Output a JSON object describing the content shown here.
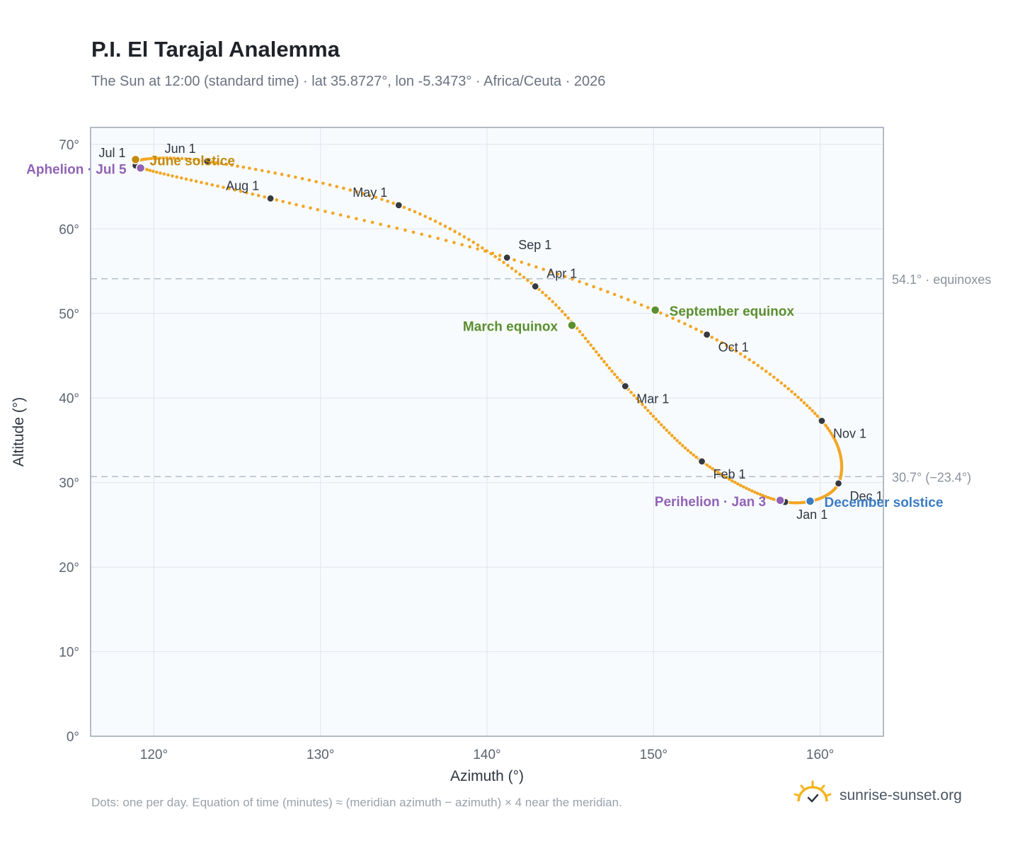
{
  "header": {
    "title": "P.I. El Tarajal Analemma",
    "subtitle": "The Sun at 12:00 (standard time) · lat 35.8727°, lon -5.3473° · Africa/Ceuta · 2026"
  },
  "footer": {
    "note": "Dots: one per day. Equation of time (minutes) ≈ (meridian azimuth − azimuth) × 4 near the meridian.",
    "brand": "sunrise-sunset.org",
    "brand_icon": "sun-logo-icon"
  },
  "colors": {
    "curve": "#f2a623",
    "month_dot": "#343a40",
    "equinox": "#5b8f2e",
    "june_solstice": "#c48a0e",
    "december_solstice": "#3b7cc4",
    "apsis": "#9063b5",
    "plot_bg": "#f8fbfe",
    "grid": "#e3e8ee",
    "refline": "#b3bdc8"
  },
  "chart_data": {
    "type": "scatter",
    "xlabel": "Azimuth (°)",
    "ylabel": "Altitude (°)",
    "xlim": [
      116.2,
      163.8
    ],
    "ylim": [
      0,
      72
    ],
    "x_ticks": [
      120,
      130,
      140,
      150,
      160
    ],
    "x_tick_labels": [
      "120°",
      "130°",
      "140°",
      "150°",
      "160°"
    ],
    "y_ticks": [
      0,
      10,
      20,
      30,
      40,
      50,
      60,
      70
    ],
    "y_tick_labels": [
      "0°",
      "10°",
      "20°",
      "30°",
      "40°",
      "50°",
      "60°",
      "70°"
    ],
    "grid": true,
    "reference_lines": [
      {
        "y": 54.1,
        "label": "54.1° · equinoxes"
      },
      {
        "y": 30.7,
        "label": "30.7° (−23.4°)"
      }
    ],
    "months": [
      {
        "label": "Jan 1",
        "az": 157.9,
        "alt": 27.7
      },
      {
        "label": "Feb 1",
        "az": 152.9,
        "alt": 32.5
      },
      {
        "label": "Mar 1",
        "az": 148.3,
        "alt": 41.4
      },
      {
        "label": "Apr 1",
        "az": 142.9,
        "alt": 53.2
      },
      {
        "label": "May 1",
        "az": 134.7,
        "alt": 62.8
      },
      {
        "label": "Jun 1",
        "az": 123.2,
        "alt": 68.0
      },
      {
        "label": "Jul 1",
        "az": 118.9,
        "alt": 67.5
      },
      {
        "label": "Aug 1",
        "az": 127.0,
        "alt": 63.6
      },
      {
        "label": "Sep 1",
        "az": 141.2,
        "alt": 56.6
      },
      {
        "label": "Oct 1",
        "az": 153.2,
        "alt": 47.5
      },
      {
        "label": "Nov 1",
        "az": 160.1,
        "alt": 37.3
      },
      {
        "label": "Dec 1",
        "az": 161.1,
        "alt": 29.9
      }
    ],
    "events": [
      {
        "label": "March equinox",
        "az": 145.1,
        "alt": 48.6,
        "kind": "equinox"
      },
      {
        "label": "June solstice",
        "az": 118.9,
        "alt": 68.2,
        "kind": "june_solstice"
      },
      {
        "label": "September equinox",
        "az": 150.1,
        "alt": 50.4,
        "kind": "equinox"
      },
      {
        "label": "December solstice",
        "az": 159.4,
        "alt": 27.8,
        "kind": "december_solstice"
      },
      {
        "label": "Perihelion · Jan 3",
        "az": 157.6,
        "alt": 27.9,
        "kind": "apsis"
      },
      {
        "label": "Aphelion · Jul 5",
        "az": 119.2,
        "alt": 67.2,
        "kind": "apsis"
      }
    ]
  }
}
